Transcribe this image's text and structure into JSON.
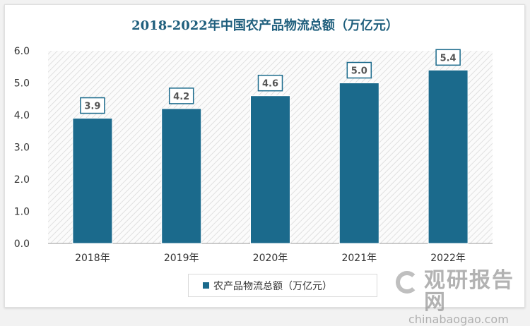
{
  "chart_data": {
    "type": "bar",
    "title": "2018-2022年中国农产品物流总额（万亿元）",
    "categories": [
      "2018年",
      "2019年",
      "2020年",
      "2021年",
      "2022年"
    ],
    "series": [
      {
        "name": "农产品物流总额（万亿元）",
        "values": [
          3.9,
          4.2,
          4.6,
          5.0,
          5.4
        ]
      }
    ],
    "ylim": [
      0,
      6
    ],
    "yticks": [
      "0.0",
      "1.0",
      "2.0",
      "3.0",
      "4.0",
      "5.0",
      "6.0"
    ],
    "xlabel": "",
    "ylabel": "",
    "legend": "bottom",
    "grid": false,
    "colors": {
      "bar": "#1b6a8c",
      "title": "#1f5f7d"
    }
  },
  "watermark": {
    "cn": "观研报告网",
    "en": "chinabaogao.com"
  }
}
